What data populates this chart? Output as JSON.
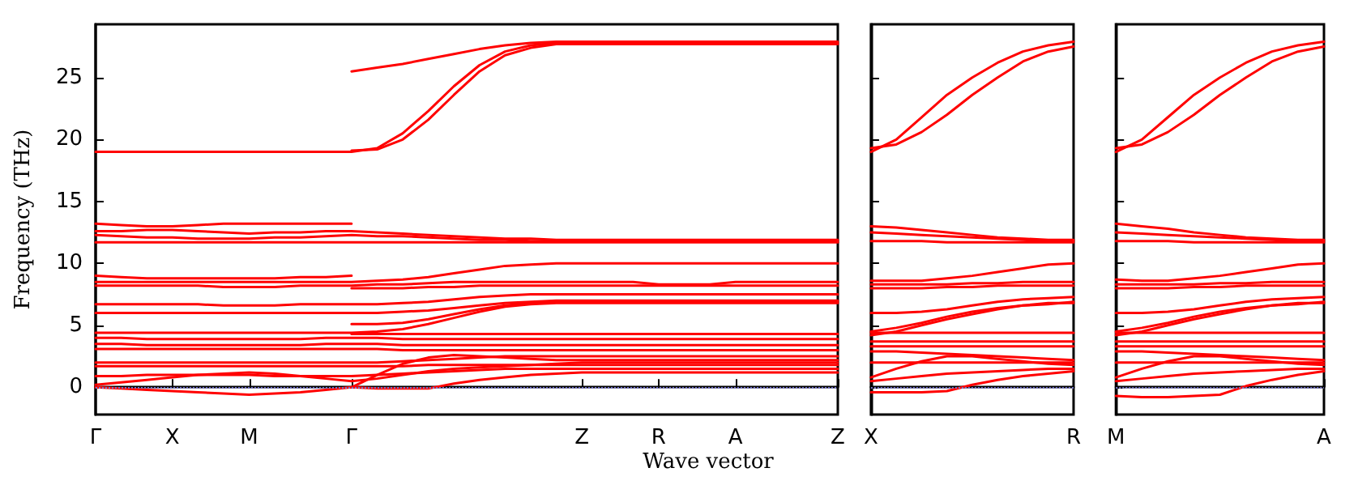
{
  "chart_data": [
    {
      "type": "line",
      "xlabel": "Wave vector",
      "ylabel": "Frequency (THz)",
      "ylim": [
        -2.2,
        29.3
      ],
      "categories": [
        "Γ",
        null,
        null,
        "X",
        null,
        null,
        "M",
        null,
        null,
        null,
        "Γ",
        null,
        null,
        null,
        null,
        null,
        null,
        null,
        null,
        "Z",
        null,
        null,
        "R",
        null,
        null,
        "A",
        null,
        null,
        null,
        "Z"
      ],
      "yticks": [
        0,
        5,
        10,
        15,
        20,
        25
      ],
      "grid": false,
      "line_style": "solid",
      "ref_lines": [
        {
          "axis": "y",
          "value": 0,
          "color": "#7777cc",
          "line_style": "dotted"
        }
      ],
      "series": [
        {
          "color": "#ff0000",
          "values": [
            null,
            null,
            null,
            null,
            null,
            null,
            null,
            null,
            null,
            null,
            25.5,
            25.8,
            26.1,
            26.5,
            26.9,
            27.3,
            27.6,
            27.8,
            27.9,
            27.9,
            27.9,
            27.9,
            27.9,
            27.9,
            27.9,
            27.9,
            27.9,
            27.9,
            27.9,
            27.9
          ]
        },
        {
          "color": "#ff0000",
          "values": [
            19.0,
            19.0,
            19.0,
            19.0,
            19.0,
            19.0,
            19.0,
            19.0,
            19.0,
            19.0,
            19.0,
            19.3,
            20.5,
            22.3,
            24.3,
            26.0,
            27.1,
            27.6,
            27.8,
            27.8,
            27.8,
            27.8,
            27.8,
            27.8,
            27.8,
            27.8,
            27.8,
            27.8,
            27.8,
            27.8
          ]
        },
        {
          "color": "#ff0000",
          "values": [
            null,
            null,
            null,
            null,
            null,
            null,
            null,
            null,
            null,
            null,
            19.1,
            19.2,
            20.0,
            21.6,
            23.6,
            25.5,
            26.8,
            27.4,
            27.7,
            27.7,
            27.7,
            27.7,
            27.7,
            27.7,
            27.7,
            27.7,
            27.7,
            27.7,
            27.7,
            27.7
          ]
        },
        {
          "color": "#ff0000",
          "values": [
            13.2,
            13.1,
            13.0,
            13.0,
            13.1,
            13.2,
            13.2,
            13.2,
            13.2,
            13.2,
            13.2,
            null,
            null,
            null,
            null,
            null,
            null,
            null,
            null,
            null,
            null,
            null,
            null,
            null,
            null,
            null,
            null,
            null,
            null,
            null
          ]
        },
        {
          "color": "#ff0000",
          "values": [
            12.6,
            12.6,
            12.7,
            12.7,
            12.6,
            12.5,
            12.4,
            12.5,
            12.5,
            12.6,
            12.6,
            12.5,
            12.4,
            12.3,
            12.2,
            12.1,
            12.0,
            12.0,
            11.9,
            11.9,
            11.9,
            11.9,
            11.9,
            11.9,
            11.9,
            11.9,
            11.9,
            11.9,
            11.9,
            11.9
          ]
        },
        {
          "color": "#ff0000",
          "values": [
            12.3,
            12.2,
            12.1,
            12.1,
            12.0,
            12.0,
            12.0,
            12.1,
            12.1,
            12.2,
            12.3,
            12.2,
            12.2,
            12.1,
            12.0,
            11.9,
            11.9,
            11.8,
            11.8,
            11.8,
            11.8,
            11.8,
            11.8,
            11.8,
            11.8,
            11.8,
            11.8,
            11.8,
            11.8,
            11.8
          ]
        },
        {
          "color": "#ff0000",
          "values": [
            11.7,
            11.7,
            11.7,
            11.7,
            11.7,
            11.7,
            11.7,
            11.7,
            11.7,
            11.7,
            11.7,
            11.7,
            11.7,
            11.7,
            11.7,
            11.7,
            11.7,
            11.7,
            11.7,
            11.7,
            11.7,
            11.7,
            11.7,
            11.7,
            11.7,
            11.7,
            11.7,
            11.7,
            11.7,
            11.7
          ]
        },
        {
          "color": "#ff0000",
          "values": [
            9.0,
            8.9,
            8.8,
            8.8,
            8.8,
            8.8,
            8.8,
            8.8,
            8.9,
            8.9,
            9.0,
            null,
            null,
            null,
            null,
            null,
            null,
            null,
            null,
            null,
            null,
            null,
            null,
            null,
            null,
            null,
            null,
            null,
            null,
            null
          ]
        },
        {
          "color": "#ff0000",
          "values": [
            8.5,
            8.5,
            8.5,
            8.5,
            8.5,
            8.5,
            8.5,
            8.5,
            8.5,
            8.5,
            8.5,
            8.6,
            8.7,
            8.9,
            9.2,
            9.5,
            9.8,
            9.9,
            10.0,
            10.0,
            10.0,
            10.0,
            10.0,
            10.0,
            10.0,
            10.0,
            10.0,
            10.0,
            10.0,
            10.0
          ]
        },
        {
          "color": "#ff0000",
          "values": [
            8.2,
            8.2,
            8.2,
            8.2,
            8.2,
            8.1,
            8.1,
            8.1,
            8.2,
            8.2,
            8.2,
            8.3,
            8.3,
            8.4,
            8.5,
            8.5,
            8.5,
            8.5,
            8.5,
            8.5,
            8.5,
            8.5,
            8.3,
            8.3,
            8.3,
            8.5,
            8.5,
            8.5,
            8.5,
            8.5
          ]
        },
        {
          "color": "#ff0000",
          "values": [
            null,
            null,
            null,
            null,
            null,
            null,
            null,
            null,
            null,
            null,
            8.0,
            8.0,
            8.0,
            8.1,
            8.1,
            8.2,
            8.2,
            8.2,
            8.2,
            8.2,
            8.2,
            8.2,
            8.2,
            8.2,
            8.2,
            8.2,
            8.2,
            8.2,
            8.2,
            8.2
          ]
        },
        {
          "color": "#ff0000",
          "values": [
            6.7,
            6.7,
            6.7,
            6.7,
            6.7,
            6.6,
            6.6,
            6.6,
            6.7,
            6.7,
            6.7,
            6.7,
            6.8,
            6.9,
            7.1,
            7.3,
            7.4,
            7.5,
            7.5,
            7.5,
            7.5,
            7.5,
            7.5,
            7.5,
            7.5,
            7.5,
            7.5,
            7.5,
            7.5,
            7.5
          ]
        },
        {
          "color": "#ff0000",
          "values": [
            6.0,
            6.0,
            6.0,
            6.0,
            6.0,
            6.0,
            6.0,
            6.0,
            6.0,
            6.0,
            6.0,
            6.0,
            6.1,
            6.2,
            6.4,
            6.6,
            6.8,
            6.9,
            7.0,
            7.0,
            7.0,
            7.0,
            7.0,
            7.0,
            7.0,
            7.0,
            7.0,
            7.0,
            7.0,
            7.0
          ]
        },
        {
          "color": "#ff0000",
          "values": [
            null,
            null,
            null,
            null,
            null,
            null,
            null,
            null,
            null,
            null,
            5.1,
            5.1,
            5.2,
            5.5,
            5.9,
            6.3,
            6.6,
            6.8,
            6.9,
            6.9,
            6.9,
            6.9,
            6.9,
            6.9,
            6.9,
            6.9,
            6.9,
            6.9,
            6.9,
            6.9
          ]
        },
        {
          "color": "#ff0000",
          "values": [
            4.4,
            4.4,
            4.4,
            4.4,
            4.4,
            4.4,
            4.4,
            4.4,
            4.4,
            4.4,
            4.4,
            4.5,
            4.7,
            5.1,
            5.6,
            6.1,
            6.5,
            6.7,
            6.8,
            6.8,
            6.8,
            6.8,
            6.8,
            6.8,
            6.8,
            6.8,
            6.8,
            6.8,
            6.8,
            6.8
          ]
        },
        {
          "color": "#ff0000",
          "values": [
            null,
            null,
            null,
            null,
            null,
            null,
            null,
            null,
            null,
            null,
            4.3,
            4.3,
            4.3,
            4.3,
            4.3,
            4.3,
            4.3,
            4.3,
            4.3,
            4.3,
            4.3,
            4.3,
            4.3,
            4.3,
            4.3,
            4.3,
            4.3,
            4.3,
            4.3,
            4.3
          ]
        },
        {
          "color": "#ff0000",
          "values": [
            4.0,
            4.0,
            3.9,
            3.9,
            3.9,
            3.9,
            3.9,
            3.9,
            3.9,
            4.0,
            4.0,
            4.0,
            3.9,
            3.9,
            3.9,
            3.9,
            3.9,
            3.9,
            3.9,
            3.9,
            3.9,
            3.9,
            3.9,
            3.9,
            3.9,
            3.9,
            3.9,
            3.9,
            3.9,
            3.9
          ]
        },
        {
          "color": "#ff0000",
          "values": [
            3.5,
            3.5,
            3.4,
            3.4,
            3.4,
            3.4,
            3.4,
            3.4,
            3.4,
            3.5,
            3.5,
            3.5,
            3.4,
            3.4,
            3.4,
            3.4,
            3.4,
            3.4,
            3.4,
            3.4,
            3.4,
            3.4,
            3.4,
            3.4,
            3.4,
            3.4,
            3.4,
            3.4,
            3.4,
            3.4
          ]
        },
        {
          "color": "#ff0000",
          "values": [
            3.1,
            3.1,
            3.1,
            3.1,
            3.1,
            3.1,
            3.1,
            3.1,
            3.1,
            3.1,
            3.1,
            3.1,
            3.0,
            3.0,
            3.0,
            3.0,
            3.0,
            3.0,
            3.0,
            3.0,
            3.0,
            3.0,
            3.0,
            3.0,
            3.0,
            3.0,
            3.0,
            3.0,
            3.0,
            3.0
          ]
        },
        {
          "color": "#ff0000",
          "values": [
            2.0,
            2.0,
            2.0,
            2.0,
            2.0,
            2.0,
            2.0,
            2.0,
            2.0,
            2.0,
            2.0,
            2.0,
            2.1,
            2.2,
            2.3,
            2.4,
            2.5,
            2.5,
            2.5,
            2.5,
            2.5,
            2.5,
            2.5,
            2.5,
            2.5,
            2.5,
            2.5,
            2.5,
            2.5,
            2.5
          ]
        },
        {
          "color": "#ff0000",
          "values": [
            1.7,
            1.7,
            1.7,
            1.7,
            1.7,
            1.7,
            1.7,
            1.7,
            1.7,
            1.7,
            1.7,
            1.7,
            1.7,
            1.8,
            1.8,
            1.8,
            1.8,
            1.8,
            1.8,
            1.8,
            1.8,
            1.8,
            1.8,
            1.8,
            1.8,
            1.8,
            1.8,
            1.8,
            1.8,
            1.8
          ]
        },
        {
          "color": "#ff0000",
          "values": [
            0.9,
            0.9,
            1.0,
            1.0,
            1.0,
            1.0,
            1.0,
            0.9,
            0.9,
            0.9,
            0.9,
            1.0,
            1.1,
            1.2,
            1.3,
            1.4,
            1.5,
            1.5,
            1.5,
            1.5,
            1.5,
            1.5,
            1.5,
            1.5,
            1.5,
            1.5,
            1.5,
            1.5,
            1.5,
            1.5
          ]
        },
        {
          "color": "#ff0000",
          "values": [
            0.2,
            0.4,
            0.6,
            0.8,
            1.0,
            1.1,
            1.2,
            1.1,
            0.9,
            0.7,
            0.5,
            0.7,
            1.0,
            1.3,
            1.5,
            1.6,
            1.7,
            1.8,
            1.9,
            2.0,
            2.0,
            2.0,
            2.0,
            2.0,
            2.0,
            2.0,
            2.0,
            2.0,
            2.0,
            2.0
          ]
        },
        {
          "color": "#ff0000",
          "values": [
            null,
            null,
            null,
            null,
            null,
            null,
            null,
            null,
            null,
            null,
            0,
            1.0,
            1.9,
            2.4,
            2.6,
            2.5,
            2.4,
            2.3,
            2.2,
            2.2,
            2.2,
            2.2,
            2.2,
            2.2,
            2.2,
            2.2,
            2.2,
            2.2,
            2.2,
            2.2
          ]
        },
        {
          "color": "#ff0000",
          "values": [
            0,
            -0.1,
            -0.2,
            -0.3,
            -0.4,
            -0.5,
            -0.6,
            -0.5,
            -0.4,
            -0.2,
            0,
            -0.1,
            -0.1,
            -0.1,
            0.3,
            0.6,
            0.8,
            1.0,
            1.1,
            1.2,
            1.2,
            1.2,
            1.2,
            1.2,
            1.2,
            1.2,
            1.2,
            1.2,
            1.2,
            1.2
          ]
        }
      ]
    },
    {
      "type": "line",
      "ylim": [
        -2.2,
        29.3
      ],
      "tick_labels": "x",
      "categories": [
        "X",
        null,
        null,
        null,
        null,
        null,
        null,
        null,
        "R"
      ],
      "yticks": [
        0,
        5,
        10,
        15,
        20,
        25
      ],
      "grid": false,
      "line_style": "solid",
      "ref_lines": [
        {
          "axis": "y",
          "value": 0,
          "color": "#7777cc",
          "line_style": "dotted"
        }
      ],
      "series": [
        {
          "color": "#ff0000",
          "values": [
            19.0,
            20.0,
            21.8,
            23.6,
            25.0,
            26.2,
            27.1,
            27.6,
            27.9
          ]
        },
        {
          "color": "#ff0000",
          "values": [
            19.3,
            19.6,
            20.6,
            22.0,
            23.6,
            25.0,
            26.3,
            27.1,
            27.5
          ]
        },
        {
          "color": "#ff0000",
          "values": [
            13.0,
            12.9,
            12.7,
            12.5,
            12.3,
            12.1,
            12.0,
            11.9,
            11.9
          ]
        },
        {
          "color": "#ff0000",
          "values": [
            12.5,
            12.4,
            12.3,
            12.2,
            12.1,
            12.0,
            11.9,
            11.8,
            11.8
          ]
        },
        {
          "color": "#ff0000",
          "values": [
            11.8,
            11.8,
            11.8,
            11.7,
            11.7,
            11.7,
            11.7,
            11.7,
            11.7
          ]
        },
        {
          "color": "#ff0000",
          "values": [
            8.6,
            8.6,
            8.6,
            8.8,
            9.0,
            9.3,
            9.6,
            9.9,
            10.0
          ]
        },
        {
          "color": "#ff0000",
          "values": [
            8.3,
            8.3,
            8.3,
            8.3,
            8.4,
            8.4,
            8.5,
            8.5,
            8.5
          ]
        },
        {
          "color": "#ff0000",
          "values": [
            8.0,
            8.0,
            8.0,
            8.1,
            8.1,
            8.2,
            8.2,
            8.2,
            8.2
          ]
        },
        {
          "color": "#ff0000",
          "values": [
            6.0,
            6.0,
            6.1,
            6.3,
            6.6,
            6.9,
            7.1,
            7.2,
            7.3
          ]
        },
        {
          "color": "#ff0000",
          "values": [
            4.5,
            4.8,
            5.2,
            5.7,
            6.1,
            6.4,
            6.6,
            6.8,
            6.8
          ]
        },
        {
          "color": "#ff0000",
          "values": [
            4.2,
            4.5,
            5.0,
            5.5,
            5.9,
            6.3,
            6.6,
            6.7,
            6.9
          ]
        },
        {
          "color": "#ff0000",
          "values": [
            4.4,
            4.4,
            4.4,
            4.4,
            4.4,
            4.4,
            4.4,
            4.4,
            4.4
          ]
        },
        {
          "color": "#ff0000",
          "values": [
            3.7,
            3.7,
            3.7,
            3.7,
            3.7,
            3.7,
            3.7,
            3.7,
            3.7
          ]
        },
        {
          "color": "#ff0000",
          "values": [
            3.3,
            3.3,
            3.3,
            3.3,
            3.3,
            3.3,
            3.3,
            3.3,
            3.3
          ]
        },
        {
          "color": "#ff0000",
          "values": [
            2.9,
            2.9,
            2.8,
            2.7,
            2.6,
            2.5,
            2.4,
            2.3,
            2.2
          ]
        },
        {
          "color": "#ff0000",
          "values": [
            2.0,
            2.0,
            2.0,
            2.0,
            2.0,
            2.0,
            2.0,
            2.0,
            2.0
          ]
        },
        {
          "color": "#ff0000",
          "values": [
            0.8,
            1.5,
            2.1,
            2.5,
            2.5,
            2.3,
            2.1,
            1.9,
            1.8
          ]
        },
        {
          "color": "#ff0000",
          "values": [
            0.5,
            0.7,
            0.9,
            1.1,
            1.2,
            1.3,
            1.4,
            1.5,
            1.5
          ]
        },
        {
          "color": "#ff0000",
          "values": [
            -0.4,
            -0.4,
            -0.4,
            -0.3,
            0.2,
            0.6,
            0.9,
            1.1,
            1.3
          ]
        }
      ]
    },
    {
      "type": "line",
      "ylim": [
        -2.2,
        29.3
      ],
      "tick_labels": "x",
      "categories": [
        "M",
        null,
        null,
        null,
        null,
        null,
        null,
        null,
        "A"
      ],
      "yticks": [
        0,
        5,
        10,
        15,
        20,
        25
      ],
      "grid": false,
      "line_style": "solid",
      "ref_lines": [
        {
          "axis": "y",
          "value": 0,
          "color": "#7777cc",
          "line_style": "dotted"
        }
      ],
      "series": [
        {
          "color": "#ff0000",
          "values": [
            19.0,
            20.0,
            21.8,
            23.6,
            25.0,
            26.2,
            27.1,
            27.6,
            27.9
          ]
        },
        {
          "color": "#ff0000",
          "values": [
            19.3,
            19.6,
            20.6,
            22.0,
            23.6,
            25.0,
            26.3,
            27.1,
            27.5
          ]
        },
        {
          "color": "#ff0000",
          "values": [
            13.2,
            13.0,
            12.8,
            12.5,
            12.3,
            12.1,
            12.0,
            11.9,
            11.9
          ]
        },
        {
          "color": "#ff0000",
          "values": [
            12.5,
            12.4,
            12.3,
            12.2,
            12.1,
            12.0,
            11.9,
            11.8,
            11.8
          ]
        },
        {
          "color": "#ff0000",
          "values": [
            11.8,
            11.8,
            11.8,
            11.7,
            11.7,
            11.7,
            11.7,
            11.7,
            11.7
          ]
        },
        {
          "color": "#ff0000",
          "values": [
            8.7,
            8.6,
            8.6,
            8.8,
            9.0,
            9.3,
            9.6,
            9.9,
            10.0
          ]
        },
        {
          "color": "#ff0000",
          "values": [
            8.3,
            8.3,
            8.3,
            8.3,
            8.4,
            8.4,
            8.5,
            8.5,
            8.5
          ]
        },
        {
          "color": "#ff0000",
          "values": [
            8.0,
            8.0,
            8.0,
            8.1,
            8.1,
            8.2,
            8.2,
            8.2,
            8.2
          ]
        },
        {
          "color": "#ff0000",
          "values": [
            6.0,
            6.0,
            6.1,
            6.3,
            6.6,
            6.9,
            7.1,
            7.2,
            7.3
          ]
        },
        {
          "color": "#ff0000",
          "values": [
            4.5,
            4.8,
            5.2,
            5.7,
            6.1,
            6.4,
            6.6,
            6.8,
            6.8
          ]
        },
        {
          "color": "#ff0000",
          "values": [
            4.2,
            4.5,
            5.0,
            5.5,
            5.9,
            6.3,
            6.6,
            6.7,
            6.9
          ]
        },
        {
          "color": "#ff0000",
          "values": [
            4.4,
            4.4,
            4.4,
            4.4,
            4.4,
            4.4,
            4.4,
            4.4,
            4.4
          ]
        },
        {
          "color": "#ff0000",
          "values": [
            3.7,
            3.7,
            3.7,
            3.7,
            3.7,
            3.7,
            3.7,
            3.7,
            3.7
          ]
        },
        {
          "color": "#ff0000",
          "values": [
            3.3,
            3.3,
            3.3,
            3.3,
            3.3,
            3.3,
            3.3,
            3.3,
            3.3
          ]
        },
        {
          "color": "#ff0000",
          "values": [
            2.9,
            2.9,
            2.8,
            2.7,
            2.6,
            2.5,
            2.4,
            2.3,
            2.2
          ]
        },
        {
          "color": "#ff0000",
          "values": [
            2.0,
            2.0,
            2.0,
            2.0,
            2.0,
            2.0,
            2.0,
            2.0,
            2.0
          ]
        },
        {
          "color": "#ff0000",
          "values": [
            0.8,
            1.5,
            2.1,
            2.5,
            2.5,
            2.3,
            2.1,
            1.9,
            1.8
          ]
        },
        {
          "color": "#ff0000",
          "values": [
            0.5,
            0.7,
            0.9,
            1.1,
            1.2,
            1.3,
            1.4,
            1.5,
            1.5
          ]
        },
        {
          "color": "#ff0000",
          "values": [
            -0.7,
            -0.8,
            -0.8,
            -0.7,
            -0.6,
            0.1,
            0.6,
            1.0,
            1.3
          ]
        }
      ]
    }
  ]
}
